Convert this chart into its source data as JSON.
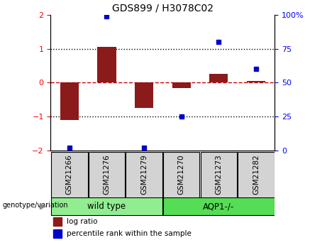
{
  "title": "GDS899 / H3078C02",
  "samples": [
    "GSM21266",
    "GSM21276",
    "GSM21279",
    "GSM21270",
    "GSM21273",
    "GSM21282"
  ],
  "log_ratios": [
    -1.1,
    1.05,
    -0.75,
    -0.15,
    0.25,
    0.05
  ],
  "percentile_ranks": [
    2,
    99,
    2,
    25,
    80,
    60
  ],
  "bar_color_red": "#8B1A1A",
  "dot_color_blue": "#0000CD",
  "red_dashed_color": "#CC0000",
  "ylim": [
    -2,
    2
  ],
  "yticks_left": [
    -2,
    -1,
    0,
    1,
    2
  ],
  "yticks_right": [
    0,
    25,
    50,
    75,
    100
  ],
  "yticklabels_right": [
    "0",
    "25",
    "50",
    "75",
    "100%"
  ],
  "sample_box_color": "#d3d3d3",
  "wildtype_color": "#90EE90",
  "aqp1_color": "#55DD55",
  "wildtype_label": "wild type",
  "aqp1_label": "AQP1-/-",
  "genotype_label": "genotype/variation",
  "legend_log_ratio": "log ratio",
  "legend_percentile": "percentile rank within the sample",
  "n_wildtype": 3,
  "n_aqp1": 3
}
